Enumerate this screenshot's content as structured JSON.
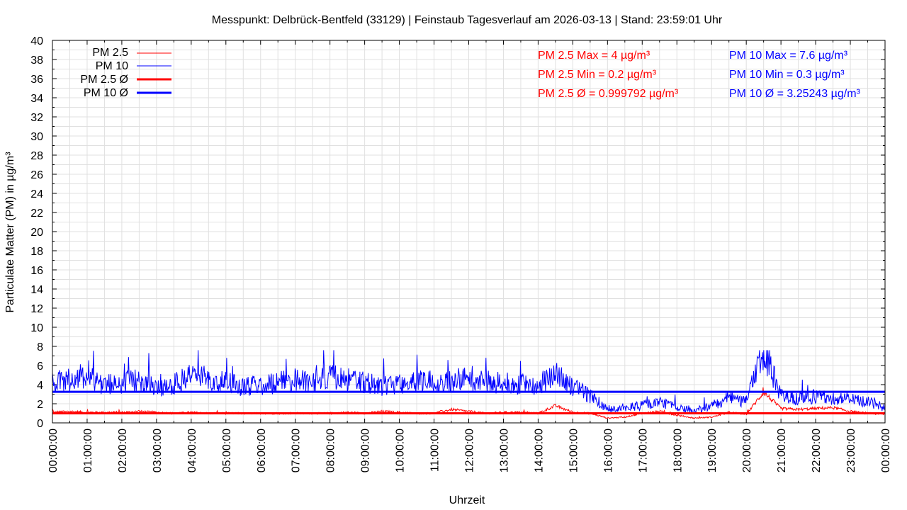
{
  "chart_data": {
    "type": "line",
    "title": "Messpunkt: Delbrück-Bentfeld (33129) | Feinstaub Tagesverlauf am 2026-03-13 | Stand: 23:59:01 Uhr",
    "xlabel": "Uhrzeit",
    "ylabel": "Particulate Matter (PM) in µg/m³",
    "ylim": [
      0,
      40
    ],
    "y_ticks": [
      0,
      2,
      4,
      6,
      8,
      10,
      12,
      14,
      16,
      18,
      20,
      22,
      24,
      26,
      28,
      30,
      32,
      34,
      36,
      38,
      40
    ],
    "x_ticks": [
      "00:00:00",
      "01:00:00",
      "02:00:00",
      "03:00:00",
      "04:00:00",
      "05:00:00",
      "06:00:00",
      "07:00:00",
      "08:00:00",
      "09:00:00",
      "10:00:00",
      "11:00:00",
      "12:00:00",
      "13:00:00",
      "14:00:00",
      "15:00:00",
      "16:00:00",
      "17:00:00",
      "18:00:00",
      "19:00:00",
      "20:00:00",
      "21:00:00",
      "22:00:00",
      "23:00:00",
      "00:00:00"
    ],
    "grid": true,
    "legend_placement": "top-left",
    "x_hours": [
      0,
      0.5,
      1,
      1.5,
      2,
      2.5,
      3,
      3.5,
      4,
      4.5,
      5,
      5.5,
      6,
      6.5,
      7,
      7.5,
      8,
      8.5,
      9,
      9.5,
      10,
      10.5,
      11,
      11.5,
      12,
      12.5,
      13,
      13.5,
      14,
      14.5,
      15,
      15.5,
      16,
      16.5,
      17,
      17.5,
      18,
      18.5,
      19,
      19.5,
      20,
      20.5,
      21,
      21.5,
      22,
      22.5,
      23,
      23.5,
      24
    ],
    "series": [
      {
        "name": "PM 2.5",
        "color": "#ff0000",
        "values": [
          1.1,
          1.2,
          1.1,
          1.1,
          1.1,
          1.2,
          1.1,
          1.0,
          1.1,
          1.0,
          1.0,
          1.0,
          1.0,
          1.0,
          1.0,
          1.0,
          1.0,
          1.1,
          1.0,
          1.2,
          1.1,
          1.0,
          1.0,
          1.4,
          1.2,
          1.0,
          1.1,
          1.1,
          1.0,
          1.8,
          1.1,
          1.0,
          0.5,
          0.6,
          1.0,
          1.2,
          0.8,
          0.5,
          0.6,
          1.1,
          0.9,
          3.2,
          1.5,
          1.4,
          1.5,
          1.6,
          1.2,
          1.0,
          0.9
        ]
      },
      {
        "name": "PM 10",
        "color": "#0000ff",
        "values": [
          4.2,
          4.5,
          5.0,
          4.0,
          4.2,
          4.5,
          3.8,
          4.0,
          5.2,
          4.5,
          4.2,
          3.8,
          4.0,
          4.2,
          4.5,
          4.5,
          4.8,
          4.5,
          4.2,
          3.9,
          4.2,
          4.3,
          4.5,
          4.4,
          4.6,
          4.3,
          4.2,
          4.0,
          4.0,
          5.0,
          3.8,
          2.8,
          1.5,
          1.6,
          1.8,
          2.2,
          1.7,
          1.3,
          1.8,
          2.6,
          2.2,
          7.6,
          2.8,
          2.5,
          2.8,
          2.6,
          2.5,
          2.2,
          1.6
        ]
      },
      {
        "name": "PM 2.5 Ø",
        "color": "#ff0000",
        "constant": 0.999792
      },
      {
        "name": "PM 10 Ø",
        "color": "#0000ff",
        "constant": 3.25243
      }
    ],
    "stats": {
      "pm25": {
        "max": "PM 2.5 Max = 4 µg/m³",
        "min": "PM 2.5 Min = 0.2 µg/m³",
        "avg": "PM 2.5 Ø = 0.999792 µg/m³",
        "color": "#ff0000"
      },
      "pm10": {
        "max": "PM 10 Max = 7.6 µg/m³",
        "min": "PM 10 Min = 0.3 µg/m³",
        "avg": "PM 10 Ø = 3.25243 µg/m³",
        "color": "#0000ff"
      }
    }
  }
}
